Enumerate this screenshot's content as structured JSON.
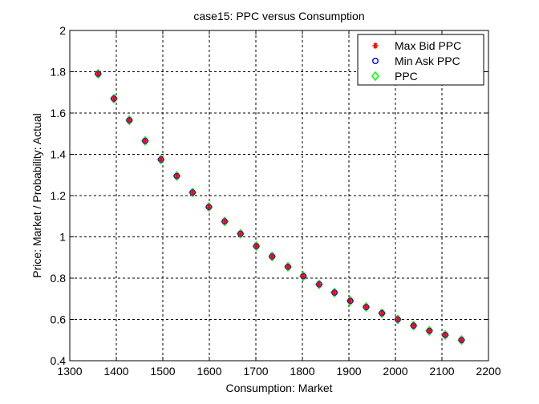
{
  "chart_data": {
    "type": "scatter",
    "title": "case15: PPC versus Consumption",
    "xlabel": "Consumption: Market",
    "ylabel": "Price: Market / Probability: Actual",
    "xlim": [
      1300,
      2200
    ],
    "ylim": [
      0.4,
      2
    ],
    "xticks": [
      "1300",
      "1400",
      "1500",
      "1600",
      "1700",
      "1800",
      "1900",
      "2000",
      "2100",
      "2200"
    ],
    "yticks": [
      "0.4",
      "0.6",
      "0.8",
      "1",
      "1.2",
      "1.4",
      "1.6",
      "1.8",
      "2"
    ],
    "grid": true,
    "legend_position": "top-right",
    "series": [
      {
        "name": "Max Bid PPC",
        "marker": "star",
        "color": "#ff0000"
      },
      {
        "name": "Min Ask PPC",
        "marker": "circle",
        "color": "#0000ff"
      },
      {
        "name": "PPC",
        "marker": "diamond",
        "color": "#00ff00"
      }
    ],
    "points": {
      "x": [
        1361,
        1395,
        1428,
        1462,
        1496,
        1530,
        1564,
        1599,
        1633,
        1667,
        1701,
        1735,
        1769,
        1802,
        1836,
        1869,
        1903,
        1937,
        1971,
        2005,
        2039,
        2073,
        2107,
        2142
      ],
      "y": [
        1.79,
        1.67,
        1.565,
        1.465,
        1.375,
        1.295,
        1.215,
        1.145,
        1.075,
        1.015,
        0.955,
        0.905,
        0.855,
        0.81,
        0.77,
        0.73,
        0.69,
        0.66,
        0.63,
        0.6,
        0.57,
        0.545,
        0.525,
        0.5
      ]
    }
  }
}
